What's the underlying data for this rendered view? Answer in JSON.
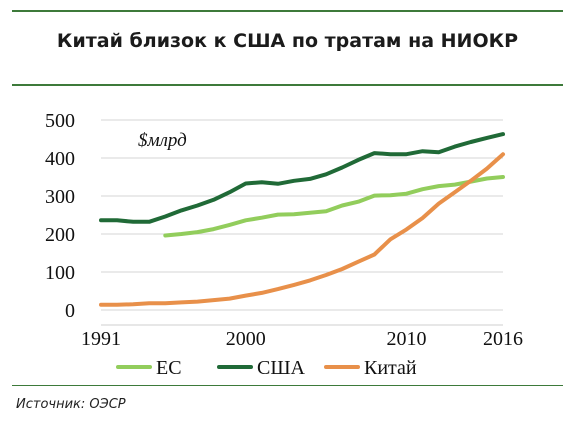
{
  "title": "Китай близок к США по тратам на НИОКР",
  "source": "Источник: ОЭСР",
  "chart_data": {
    "type": "line",
    "unit_label": "$млрд",
    "x_ticks": [
      1991,
      2000,
      2010,
      2016
    ],
    "xlim": [
      1991,
      2016
    ],
    "y_ticks": [
      0,
      100,
      200,
      300,
      400,
      500
    ],
    "ylim": [
      0,
      500
    ],
    "grid": "horizontal",
    "legend_position": "bottom",
    "x": [
      1991,
      1992,
      1993,
      1994,
      1995,
      1996,
      1997,
      1998,
      1999,
      2000,
      2001,
      2002,
      2003,
      2004,
      2005,
      2006,
      2007,
      2008,
      2009,
      2010,
      2011,
      2012,
      2013,
      2014,
      2015,
      2016
    ],
    "series": [
      {
        "name": "ЕС",
        "color": "#92cd5c",
        "values": [
          null,
          null,
          null,
          null,
          196,
          200,
          205,
          213,
          224,
          236,
          243,
          251,
          252,
          256,
          260,
          275,
          285,
          301,
          302,
          306,
          318,
          326,
          330,
          338,
          346,
          350
        ]
      },
      {
        "name": "США",
        "color": "#206a37",
        "values": [
          236,
          236,
          232,
          232,
          246,
          262,
          275,
          290,
          310,
          333,
          336,
          332,
          340,
          345,
          357,
          375,
          395,
          413,
          410,
          410,
          418,
          415,
          430,
          442,
          453,
          463
        ]
      },
      {
        "name": "Китай",
        "color": "#e8904a",
        "values": [
          14,
          14,
          15,
          18,
          18,
          20,
          22,
          26,
          30,
          38,
          45,
          55,
          66,
          78,
          92,
          108,
          127,
          146,
          186,
          212,
          242,
          280,
          310,
          340,
          372,
          410
        ]
      }
    ]
  }
}
